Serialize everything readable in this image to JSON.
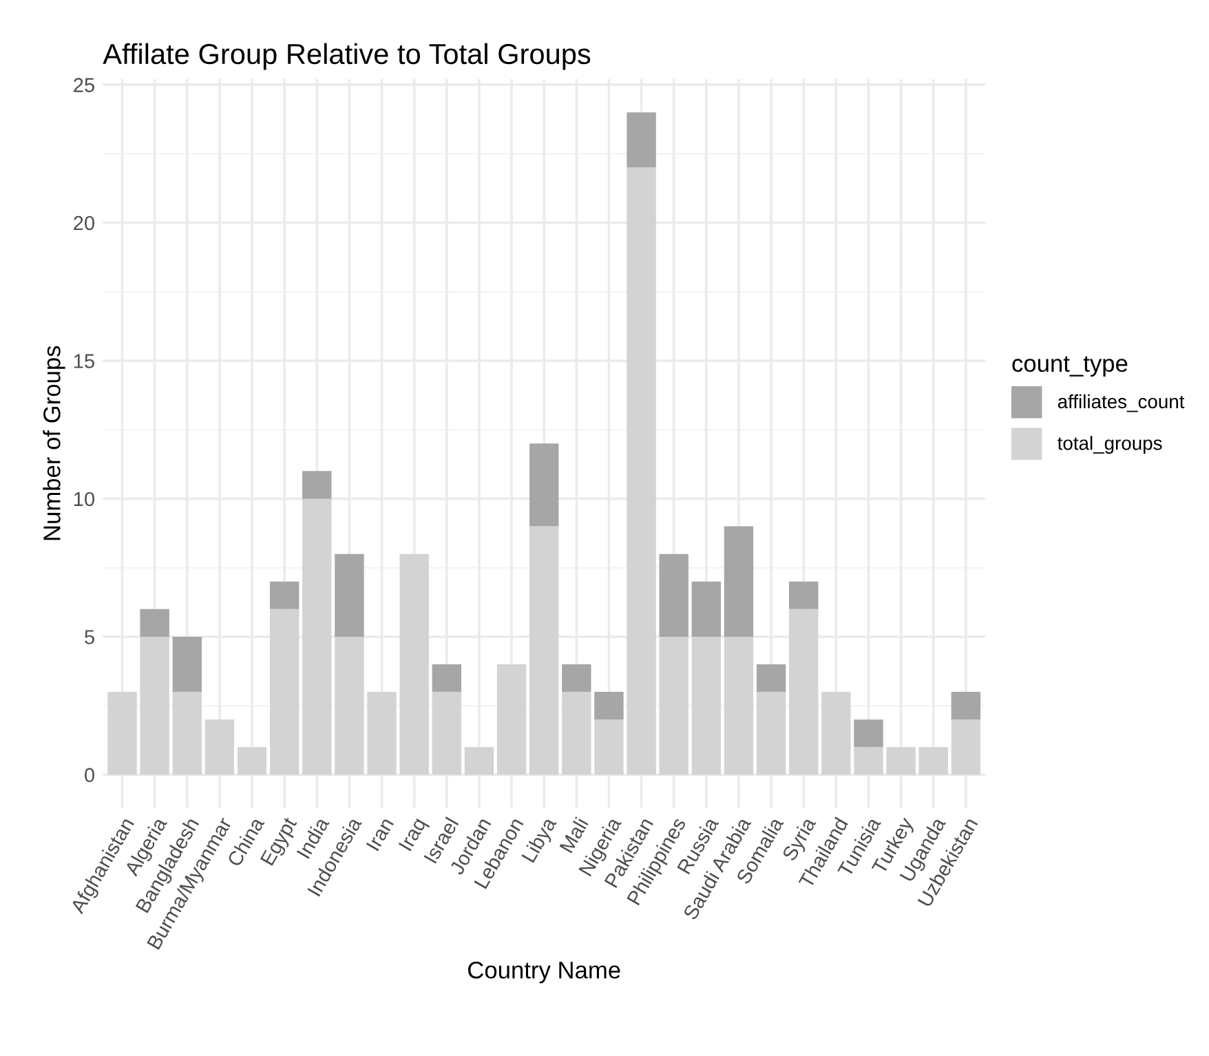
{
  "chart_data": {
    "type": "bar",
    "title": "Affilate Group Relative to Total Groups",
    "xlabel": "Country Name",
    "ylabel": "Number of Groups",
    "legend_title": "count_type",
    "categories": [
      "Afghanistan",
      "Algeria",
      "Bangladesh",
      "Burma/Myanmar",
      "China",
      "Egypt",
      "India",
      "Indonesia",
      "Iran",
      "Iraq",
      "Israel",
      "Jordan",
      "Lebanon",
      "Libya",
      "Mali",
      "Nigeria",
      "Pakistan",
      "Philippines",
      "Russia",
      "Saudi Arabia",
      "Somalia",
      "Syria",
      "Thailand",
      "Tunisia",
      "Turkey",
      "Uganda",
      "Uzbekistan"
    ],
    "series": [
      {
        "name": "total_groups",
        "color": "#d3d3d3",
        "values": [
          3,
          5,
          3,
          2,
          1,
          6,
          10,
          5,
          3,
          8,
          3,
          1,
          4,
          9,
          3,
          2,
          22,
          5,
          5,
          5,
          3,
          6,
          3,
          1,
          1,
          1,
          2
        ]
      },
      {
        "name": "affiliates_count",
        "color": "#a6a6a6",
        "values": [
          0,
          1,
          2,
          0,
          0,
          1,
          1,
          3,
          0,
          0,
          1,
          0,
          0,
          3,
          1,
          1,
          2,
          3,
          2,
          4,
          1,
          1,
          0,
          1,
          0,
          0,
          1
        ]
      }
    ],
    "stacked": true,
    "ylim": [
      -1.2,
      25.2
    ],
    "yticks": [
      0,
      5,
      10,
      15,
      20,
      25
    ],
    "grid": true,
    "legend": "right"
  }
}
